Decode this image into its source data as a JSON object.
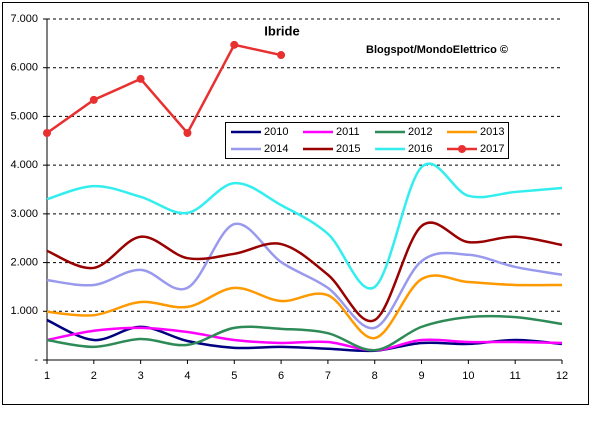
{
  "chart_data": {
    "type": "line",
    "title": "Ibride",
    "subtitle": "Blogspot/MondoElettrico ©",
    "x": [
      1,
      2,
      3,
      4,
      5,
      6,
      7,
      8,
      9,
      10,
      11,
      12
    ],
    "xlim": [
      1,
      12
    ],
    "xticks": [
      1,
      2,
      3,
      4,
      5,
      6,
      7,
      8,
      9,
      10,
      11,
      12
    ],
    "ylim": [
      0,
      7000
    ],
    "yticks": [
      {
        "value": 0,
        "label": "-"
      },
      {
        "value": 1000,
        "label": "1.000"
      },
      {
        "value": 2000,
        "label": "2.000"
      },
      {
        "value": 3000,
        "label": "3.000"
      },
      {
        "value": 4000,
        "label": "4.000"
      },
      {
        "value": 5000,
        "label": "5.000"
      },
      {
        "value": 6000,
        "label": "6.000"
      },
      {
        "value": 7000,
        "label": "7.000"
      }
    ],
    "grid": true,
    "series": [
      {
        "name": "2010",
        "color": "#000080",
        "smooth": true,
        "values": [
          820,
          410,
          680,
          390,
          250,
          270,
          230,
          190,
          350,
          330,
          410,
          330
        ]
      },
      {
        "name": "2011",
        "color": "#ff00ff",
        "smooth": true,
        "values": [
          410,
          600,
          660,
          575,
          410,
          350,
          370,
          200,
          410,
          370,
          370,
          350
        ]
      },
      {
        "name": "2012",
        "color": "#2e8b57",
        "smooth": true,
        "values": [
          410,
          270,
          430,
          310,
          660,
          640,
          550,
          200,
          680,
          880,
          880,
          740
        ]
      },
      {
        "name": "2013",
        "color": "#ff9900",
        "smooth": true,
        "values": [
          990,
          920,
          1190,
          1090,
          1480,
          1210,
          1330,
          450,
          1660,
          1600,
          1540,
          1540
        ]
      },
      {
        "name": "2014",
        "color": "#9999ee",
        "smooth": true,
        "values": [
          1640,
          1540,
          1850,
          1480,
          2790,
          2010,
          1480,
          660,
          2030,
          2160,
          1910,
          1750
        ]
      },
      {
        "name": "2015",
        "color": "#990000",
        "smooth": true,
        "values": [
          2240,
          1890,
          2530,
          2090,
          2180,
          2380,
          1750,
          820,
          2750,
          2420,
          2530,
          2360
        ]
      },
      {
        "name": "2016",
        "color": "#33eeee",
        "smooth": true,
        "values": [
          3300,
          3570,
          3350,
          3020,
          3630,
          3180,
          2590,
          1500,
          3960,
          3370,
          3450,
          3530
        ]
      },
      {
        "name": "2017",
        "color": "#e83030",
        "smooth": false,
        "marker": true,
        "values": [
          4660,
          5340,
          5770,
          4660,
          6470,
          6260,
          null,
          null,
          null,
          null,
          null,
          null
        ]
      }
    ]
  }
}
